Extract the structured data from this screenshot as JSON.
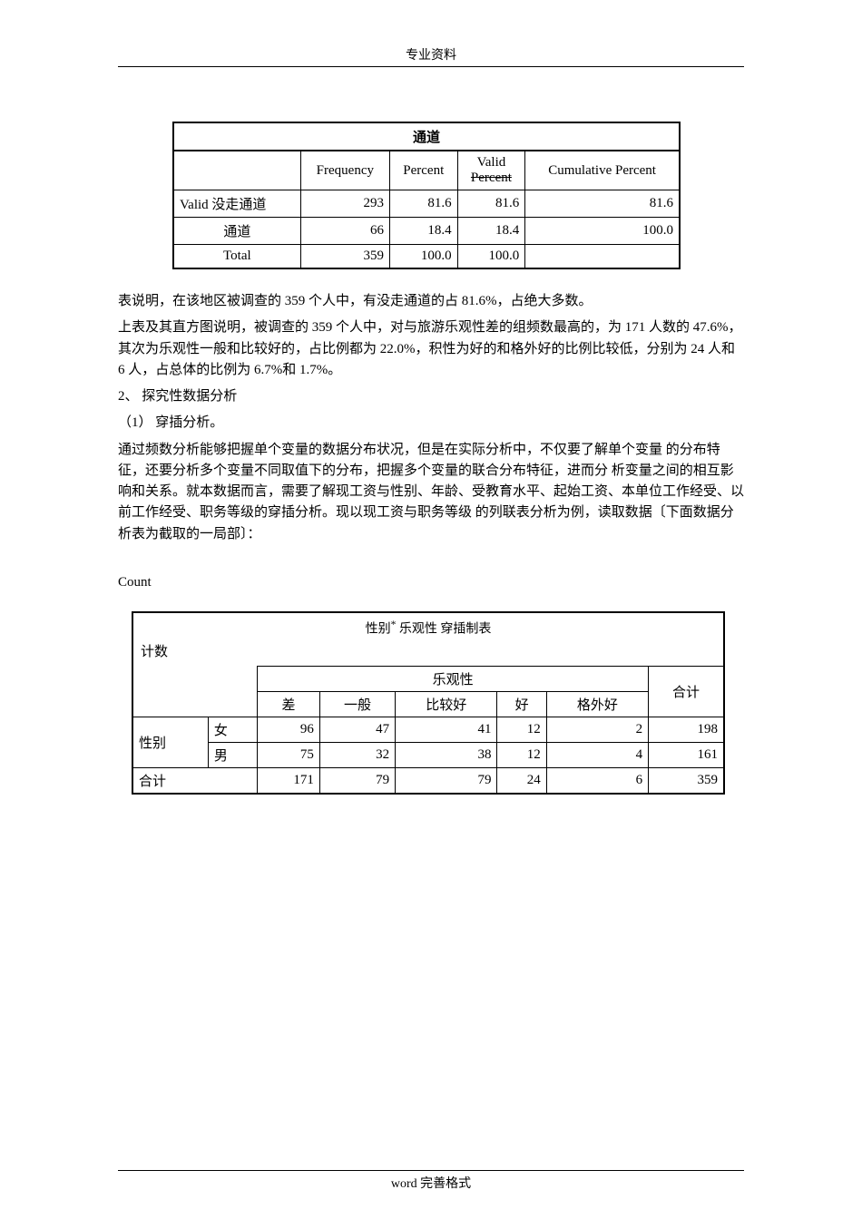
{
  "header": "专业资料",
  "footer": "word 完善格式",
  "table1": {
    "title": "通道",
    "headers": {
      "freq": "Frequency",
      "percent": "Percent",
      "valid": "Valid",
      "valid_strike": "Percent",
      "cum": "Cumulative Percent"
    },
    "rows": [
      {
        "label": "Valid 没走通道",
        "freq": "293",
        "pct": "81.6",
        "vpct": "81.6",
        "cpct": "81.6"
      },
      {
        "label": "通道",
        "freq": "66",
        "pct": "18.4",
        "vpct": "18.4",
        "cpct": "100.0"
      },
      {
        "label": "Total",
        "freq": "359",
        "pct": "100.0",
        "vpct": "100.0",
        "cpct": ""
      }
    ]
  },
  "paragraph1": "表说明，在该地区被调查的 359 个人中，有没走通道的占 81.6%，占绝大多数。",
  "paragraph2": "上表及其直方图说明，被调查的 359 个人中，对与旅游乐观性差的组频数最高的，为 171 人数的 47.6%，其次为乐观性一般和比较好的，占比例都为 22.0%，积性为好的和格外好的比例比较低，分别为 24 人和 6 人，占总体的比例为 6.7%和 1.7%。",
  "section2_title": "2、 探究性数据分析",
  "section2_sub": "（1）  穿插分析。",
  "paragraph3": "通过频数分析能够把握单个变量的数据分布状况，但是在实际分析中，不仅要了解单个变量 的分布特征，还要分析多个变量不同取值下的分布，把握多个变量的联合分布特征，进而分 析变量之间的相互影响和关系。就本数据而言，需要了解现工资与性别、年龄、受教育水平、起始工资、本单位工作经受、以前工作经受、职务等级的穿插分析。现以现工资与职务等级 的列联表分析为例，读取数据〔下面数据分析表为截取的一局部〕：",
  "count_label": "Count",
  "table2": {
    "title_prefix": "性别",
    "title_star": "*",
    "title_suffix": " 乐观性 穿插制表",
    "sub": "计数",
    "group_header": "乐观性",
    "cols": [
      "差",
      "一般",
      "比较好",
      "好",
      "格外好"
    ],
    "total_col": "合计",
    "row_header": "性别",
    "rows": [
      {
        "label": "女",
        "vals": [
          "96",
          "47",
          "41",
          "12",
          "2"
        ],
        "total": "198"
      },
      {
        "label": "男",
        "vals": [
          "75",
          "32",
          "38",
          "12",
          "4"
        ],
        "total": "161"
      }
    ],
    "total_row_label": "合计",
    "total_row": {
      "vals": [
        "171",
        "79",
        "79",
        "24",
        "6"
      ],
      "total": "359"
    }
  }
}
